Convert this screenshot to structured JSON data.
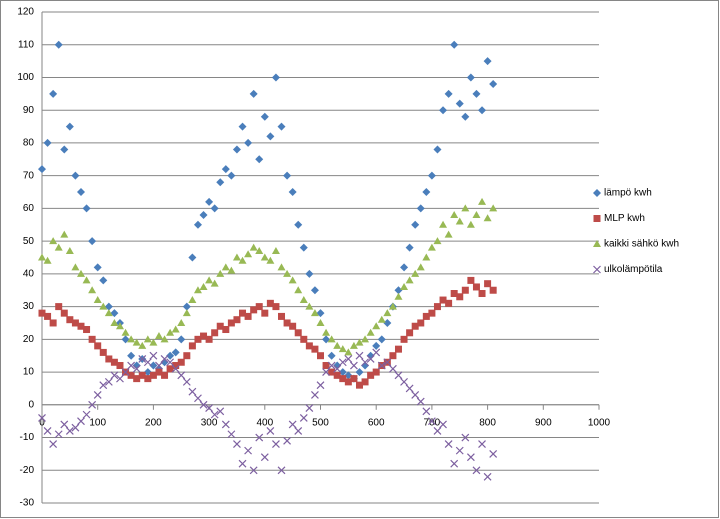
{
  "chart_data": {
    "type": "scatter",
    "x": [
      0,
      10,
      20,
      30,
      40,
      50,
      60,
      70,
      80,
      90,
      100,
      110,
      120,
      130,
      140,
      150,
      160,
      170,
      180,
      190,
      200,
      210,
      220,
      230,
      240,
      250,
      260,
      270,
      280,
      290,
      300,
      310,
      320,
      330,
      340,
      350,
      360,
      370,
      380,
      390,
      400,
      410,
      420,
      430,
      440,
      450,
      460,
      470,
      480,
      490,
      500,
      510,
      520,
      530,
      540,
      550,
      560,
      570,
      580,
      590,
      600,
      610,
      620,
      630,
      640,
      650,
      660,
      670,
      680,
      690,
      700,
      710,
      720,
      730,
      740,
      750,
      760,
      770,
      780,
      790,
      800,
      810
    ],
    "series": [
      {
        "name": "lämpö kwh",
        "color": "#4a7ebb",
        "marker": "diamond",
        "values": [
          72,
          80,
          95,
          110,
          78,
          85,
          70,
          65,
          60,
          50,
          42,
          38,
          30,
          28,
          25,
          20,
          15,
          12,
          14,
          10,
          12,
          11,
          13,
          15,
          16,
          20,
          30,
          45,
          55,
          58,
          62,
          60,
          68,
          72,
          70,
          78,
          85,
          80,
          95,
          75,
          88,
          82,
          100,
          85,
          70,
          65,
          55,
          48,
          40,
          35,
          28,
          20,
          15,
          12,
          10,
          9,
          8,
          10,
          12,
          15,
          18,
          20,
          25,
          30,
          35,
          42,
          48,
          55,
          60,
          65,
          70,
          78,
          90,
          95,
          110,
          92,
          88,
          100,
          95,
          90,
          105,
          98
        ]
      },
      {
        "name": "MLP kwh",
        "color": "#be4b48",
        "marker": "square",
        "values": [
          28,
          27,
          25,
          30,
          28,
          26,
          25,
          24,
          23,
          20,
          18,
          16,
          14,
          13,
          12,
          10,
          9,
          8,
          9,
          8,
          9,
          10,
          9,
          11,
          12,
          13,
          15,
          18,
          20,
          21,
          20,
          22,
          24,
          23,
          25,
          26,
          28,
          27,
          29,
          30,
          28,
          31,
          30,
          27,
          25,
          24,
          22,
          20,
          18,
          17,
          15,
          12,
          10,
          9,
          8,
          7,
          8,
          6,
          7,
          9,
          10,
          12,
          13,
          15,
          17,
          20,
          22,
          24,
          25,
          27,
          28,
          30,
          32,
          31,
          34,
          33,
          35,
          38,
          36,
          34,
          37,
          35
        ]
      },
      {
        "name": "kaikki sähkö kwh",
        "color": "#98b954",
        "marker": "triangle",
        "values": [
          45,
          44,
          50,
          48,
          52,
          47,
          42,
          40,
          38,
          35,
          32,
          30,
          28,
          25,
          24,
          22,
          20,
          19,
          18,
          20,
          19,
          21,
          20,
          22,
          23,
          25,
          28,
          32,
          35,
          36,
          38,
          37,
          40,
          42,
          41,
          45,
          44,
          46,
          48,
          47,
          45,
          44,
          47,
          42,
          40,
          38,
          35,
          32,
          30,
          28,
          25,
          22,
          20,
          18,
          17,
          16,
          18,
          19,
          20,
          22,
          24,
          26,
          28,
          30,
          33,
          36,
          38,
          40,
          42,
          45,
          48,
          50,
          55,
          52,
          58,
          56,
          60,
          55,
          58,
          62,
          57,
          60
        ]
      },
      {
        "name": "ulkolämpötila",
        "color": "#7d60a0",
        "marker": "x",
        "values": [
          -4,
          -8,
          -12,
          -9,
          -6,
          -8,
          -7,
          -5,
          -3,
          0,
          3,
          6,
          7,
          9,
          8,
          10,
          12,
          11,
          14,
          13,
          15,
          12,
          14,
          13,
          11,
          9,
          7,
          4,
          2,
          0,
          -1,
          -3,
          -2,
          -6,
          -9,
          -12,
          -18,
          -14,
          -20,
          -10,
          -16,
          -8,
          -12,
          -20,
          -11,
          -6,
          -8,
          -4,
          -1,
          3,
          6,
          10,
          12,
          11,
          13,
          14,
          12,
          15,
          13,
          14,
          16,
          12,
          13,
          11,
          9,
          7,
          5,
          3,
          1,
          -2,
          -5,
          -8,
          -6,
          -12,
          -18,
          -14,
          -10,
          -16,
          -20,
          -12,
          -22,
          -15
        ]
      }
    ],
    "xlim": [
      0,
      1000
    ],
    "ylim": [
      -30,
      120
    ],
    "xticks": [
      0,
      100,
      200,
      300,
      400,
      500,
      600,
      700,
      800,
      900,
      1000
    ],
    "yticks": [
      -30,
      -20,
      -10,
      0,
      10,
      20,
      30,
      40,
      50,
      60,
      70,
      80,
      90,
      100,
      110,
      120
    ],
    "grid": true,
    "legend": "right"
  }
}
